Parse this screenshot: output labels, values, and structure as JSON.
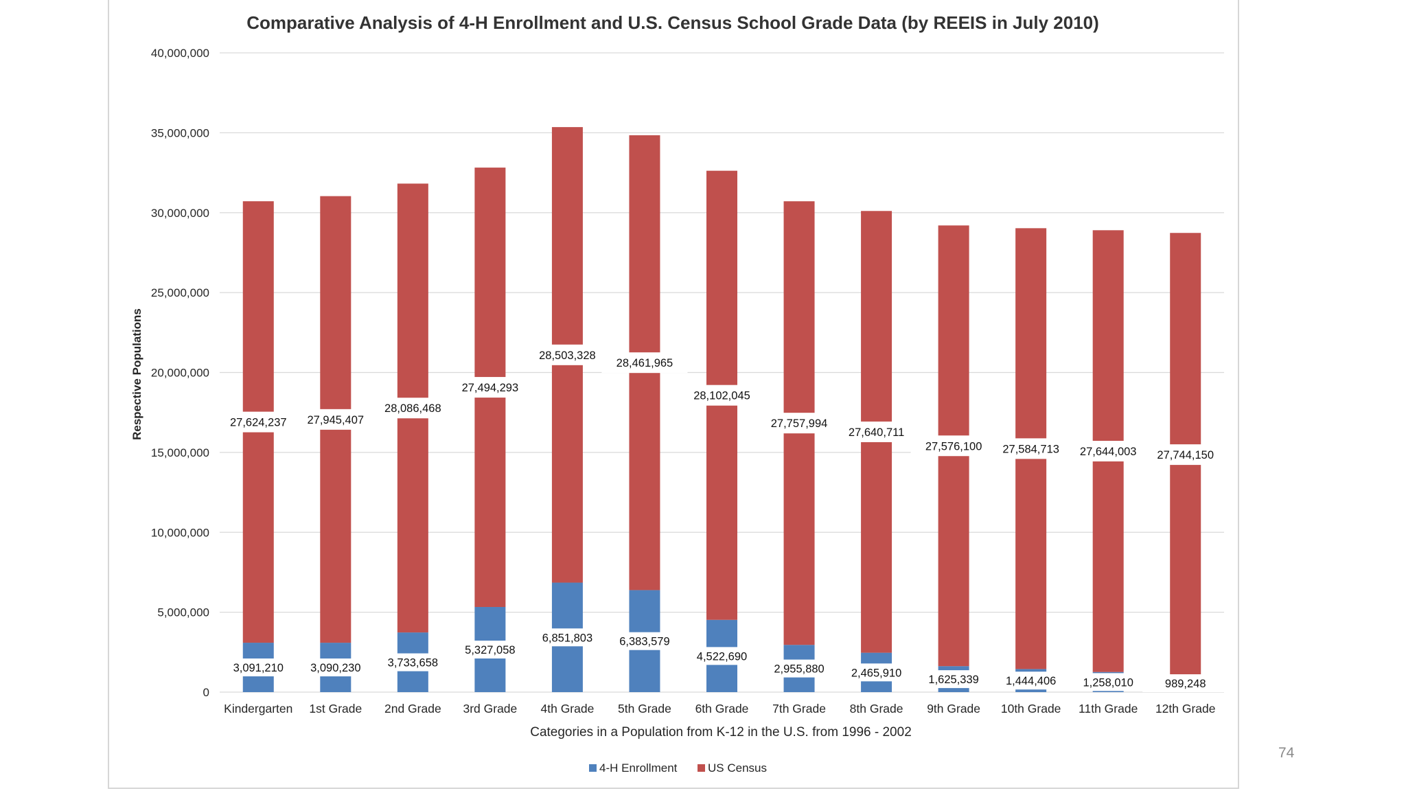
{
  "page": {
    "number": "74"
  },
  "chart_data": {
    "type": "bar",
    "stacked": true,
    "title": "Comparative Analysis of 4-H Enrollment and U.S. Census School Grade Data (by REEIS in July 2010)",
    "xlabel": "Categories in a Population from K-12 in the U.S. from 1996 - 2002",
    "ylabel": "Respective Populations",
    "ylim": [
      0,
      40000000
    ],
    "yticks": [
      0,
      5000000,
      10000000,
      15000000,
      20000000,
      25000000,
      30000000,
      35000000,
      40000000
    ],
    "ytick_labels": [
      "0",
      "5,000,000",
      "10,000,000",
      "15,000,000",
      "20,000,000",
      "25,000,000",
      "30,000,000",
      "35,000,000",
      "40,000,000"
    ],
    "grid": true,
    "legend_position": "bottom",
    "categories": [
      "Kindergarten",
      "1st Grade",
      "2nd Grade",
      "3rd Grade",
      "4th Grade",
      "5th Grade",
      "6th Grade",
      "7th Grade",
      "8th Grade",
      "9th Grade",
      "10th Grade",
      "11th Grade",
      "12th Grade"
    ],
    "series": [
      {
        "name": "4-H Enrollment",
        "color": "#4f81bd",
        "values": [
          3091210,
          3090230,
          3733658,
          5327058,
          6851803,
          6383579,
          4522690,
          2955880,
          2465910,
          1625339,
          1444406,
          1258010,
          989248
        ],
        "labels": [
          "3,091,210",
          "3,090,230",
          "3,733,658",
          "5,327,058",
          "6,851,803",
          "6,383,579",
          "4,522,690",
          "2,955,880",
          "2,465,910",
          "1,625,339",
          "1,444,406",
          "1,258,010",
          "989,248"
        ]
      },
      {
        "name": "US Census",
        "color": "#c0504d",
        "values": [
          27624237,
          27945407,
          28086468,
          27494293,
          28503328,
          28461965,
          28102045,
          27757994,
          27640711,
          27576100,
          27584713,
          27644003,
          27744150
        ],
        "labels": [
          "27,624,237",
          "27,945,407",
          "28,086,468",
          "27,494,293",
          "28,503,328",
          "28,461,965",
          "28,102,045",
          "27,757,994",
          "27,640,711",
          "27,576,100",
          "27,584,713",
          "27,644,003",
          "27,744,150"
        ]
      }
    ]
  }
}
